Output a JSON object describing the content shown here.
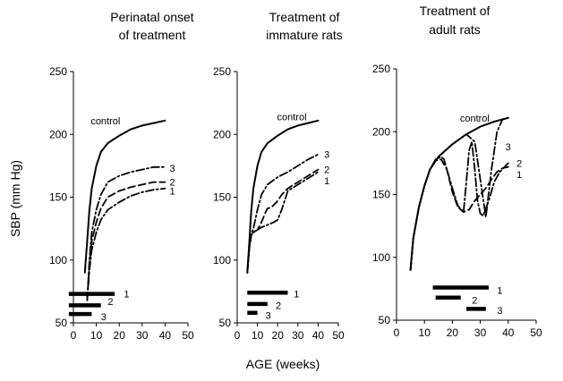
{
  "ylabel": "SBP (mm Hg)",
  "xlabel": "AGE (weeks)",
  "chart_data": [
    {
      "type": "line",
      "title": "Perinatal onset of treatment",
      "title_lines": [
        "Perinatal onset",
        "of treatment"
      ],
      "xlim": [
        0,
        50
      ],
      "ylim": [
        50,
        250
      ],
      "xticks": [
        0,
        10,
        20,
        30,
        40,
        50
      ],
      "yticks": [
        50,
        100,
        150,
        200,
        250
      ],
      "series": [
        {
          "name": "control",
          "style": "solid",
          "label_at": [
            14,
            211
          ],
          "points": [
            [
              5,
              90
            ],
            [
              6,
              115
            ],
            [
              7,
              140
            ],
            [
              8,
              157
            ],
            [
              10,
              175
            ],
            [
              12,
              186
            ],
            [
              15,
              193
            ],
            [
              20,
              199
            ],
            [
              25,
              204
            ],
            [
              30,
              207
            ],
            [
              35,
              209
            ],
            [
              40,
              211
            ]
          ]
        },
        {
          "name": "3",
          "style": "dashdot",
          "label_at": [
            42,
            173
          ],
          "points": [
            [
              6,
              68
            ],
            [
              7,
              100
            ],
            [
              8,
              122
            ],
            [
              10,
              140
            ],
            [
              12,
              152
            ],
            [
              15,
              162
            ],
            [
              20,
              167
            ],
            [
              25,
              170
            ],
            [
              30,
              172
            ],
            [
              35,
              174
            ],
            [
              40,
              174
            ]
          ]
        },
        {
          "name": "2",
          "style": "dashed",
          "label_at": [
            42,
            162
          ],
          "points": [
            [
              6,
              68
            ],
            [
              7,
              96
            ],
            [
              8,
              115
            ],
            [
              10,
              130
            ],
            [
              12,
              141
            ],
            [
              15,
              150
            ],
            [
              20,
              155
            ],
            [
              25,
              158
            ],
            [
              30,
              160
            ],
            [
              35,
              162
            ],
            [
              40,
              162
            ]
          ]
        },
        {
          "name": "1",
          "style": "dashdot",
          "label_at": [
            42,
            155
          ],
          "points": [
            [
              6,
              68
            ],
            [
              7,
              92
            ],
            [
              8,
              108
            ],
            [
              10,
              122
            ],
            [
              12,
              132
            ],
            [
              15,
              140
            ],
            [
              20,
              146
            ],
            [
              25,
              151
            ],
            [
              30,
              154
            ],
            [
              35,
              156
            ],
            [
              40,
              157
            ]
          ]
        }
      ],
      "bars": [
        {
          "label": "1",
          "start": -2,
          "end": 18,
          "y": 73,
          "label_at": [
            22,
            73
          ]
        },
        {
          "label": "2",
          "start": -2,
          "end": 12,
          "y": 64,
          "label_at": [
            15,
            67
          ]
        },
        {
          "label": "3",
          "start": -2,
          "end": 8,
          "y": 57,
          "label_at": [
            12,
            55
          ]
        }
      ]
    },
    {
      "type": "line",
      "title": "Treatment of immature rats",
      "title_lines": [
        "Treatment of",
        "immature rats"
      ],
      "xlim": [
        0,
        50
      ],
      "ylim": [
        50,
        250
      ],
      "xticks": [
        0,
        10,
        20,
        30,
        40,
        50
      ],
      "yticks": [
        50,
        100,
        150,
        200,
        250
      ],
      "series": [
        {
          "name": "control",
          "style": "solid",
          "label_at": [
            27,
            214
          ],
          "points": [
            [
              5,
              90
            ],
            [
              6,
              115
            ],
            [
              7,
              140
            ],
            [
              8,
              157
            ],
            [
              10,
              175
            ],
            [
              12,
              186
            ],
            [
              15,
              193
            ],
            [
              20,
              199
            ],
            [
              25,
              204
            ],
            [
              30,
              207
            ],
            [
              35,
              209
            ],
            [
              40,
              211
            ]
          ]
        },
        {
          "name": "3",
          "style": "dashdot",
          "label_at": [
            43,
            184
          ],
          "points": [
            [
              5,
              90
            ],
            [
              6,
              110
            ],
            [
              7,
              120
            ],
            [
              8,
              125
            ],
            [
              10,
              140
            ],
            [
              12,
              152
            ],
            [
              15,
              160
            ],
            [
              20,
              166
            ],
            [
              25,
              170
            ],
            [
              30,
              175
            ],
            [
              35,
              180
            ],
            [
              40,
              184
            ]
          ]
        },
        {
          "name": "2",
          "style": "dashed",
          "label_at": [
            43,
            172
          ],
          "points": [
            [
              5,
              90
            ],
            [
              6,
              110
            ],
            [
              7,
              120
            ],
            [
              8,
              122
            ],
            [
              10,
              124
            ],
            [
              12,
              130
            ],
            [
              14,
              138
            ],
            [
              15,
              141
            ],
            [
              17,
              142
            ],
            [
              20,
              147
            ],
            [
              22,
              152
            ],
            [
              25,
              157
            ],
            [
              30,
              162
            ],
            [
              35,
              167
            ],
            [
              40,
              172
            ]
          ]
        },
        {
          "name": "1",
          "style": "dashdot",
          "label_at": [
            43,
            163
          ],
          "points": [
            [
              5,
              90
            ],
            [
              6,
              110
            ],
            [
              7,
              120
            ],
            [
              8,
              122
            ],
            [
              10,
              124
            ],
            [
              12,
              126
            ],
            [
              15,
              128
            ],
            [
              18,
              130
            ],
            [
              20,
              132
            ],
            [
              22,
              140
            ],
            [
              25,
              155
            ],
            [
              30,
              160
            ],
            [
              35,
              165
            ],
            [
              40,
              170
            ]
          ]
        }
      ],
      "bars": [
        {
          "label": "1",
          "start": 5,
          "end": 25,
          "y": 74,
          "label_at": [
            28,
            73
          ]
        },
        {
          "label": "2",
          "start": 5,
          "end": 15,
          "y": 65,
          "label_at": [
            19,
            64
          ]
        },
        {
          "label": "3",
          "start": 5,
          "end": 10,
          "y": 58,
          "label_at": [
            14,
            56
          ]
        }
      ]
    },
    {
      "type": "line",
      "title": "Treatment of adult rats",
      "title_lines": [
        "Treatment of",
        "adult rats"
      ],
      "xlim": [
        0,
        50
      ],
      "ylim": [
        50,
        250
      ],
      "xticks": [
        0,
        10,
        20,
        30,
        40,
        50
      ],
      "yticks": [
        50,
        100,
        150,
        200,
        250
      ],
      "series": [
        {
          "name": "control",
          "style": "solid",
          "label_at": [
            28,
            211
          ],
          "points": [
            [
              5,
              90
            ],
            [
              6,
              115
            ],
            [
              8,
              140
            ],
            [
              10,
              157
            ],
            [
              12,
              170
            ],
            [
              15,
              180
            ],
            [
              20,
              190
            ],
            [
              25,
              198
            ],
            [
              30,
              204
            ],
            [
              35,
              208
            ],
            [
              40,
              211
            ]
          ]
        },
        {
          "name": "3",
          "style": "dashdot",
          "label_at": [
            39,
            188
          ],
          "points": [
            [
              5,
              90
            ],
            [
              6,
              115
            ],
            [
              8,
              140
            ],
            [
              10,
              157
            ],
            [
              12,
              170
            ],
            [
              15,
              180
            ],
            [
              20,
              190
            ],
            [
              25,
              198
            ],
            [
              28,
              192
            ],
            [
              30,
              162
            ],
            [
              32,
              132
            ],
            [
              34,
              170
            ],
            [
              36,
              200
            ],
            [
              38,
              210
            ],
            [
              40,
              211
            ]
          ]
        },
        {
          "name": "2",
          "style": "dashdot",
          "label_at": [
            43,
            175
          ],
          "points": [
            [
              5,
              90
            ],
            [
              6,
              115
            ],
            [
              8,
              140
            ],
            [
              10,
              157
            ],
            [
              12,
              170
            ],
            [
              14,
              178
            ],
            [
              16,
              180
            ],
            [
              17,
              178
            ],
            [
              18,
              170
            ],
            [
              20,
              155
            ],
            [
              22,
              141
            ],
            [
              24,
              136
            ],
            [
              25,
              160
            ],
            [
              26,
              185
            ],
            [
              27,
              192
            ],
            [
              28,
              170
            ],
            [
              29,
              145
            ],
            [
              30,
              135
            ],
            [
              31,
              133
            ],
            [
              33,
              145
            ],
            [
              35,
              160
            ],
            [
              37,
              168
            ],
            [
              40,
              175
            ]
          ]
        },
        {
          "name": "1",
          "style": "dashed",
          "label_at": [
            43,
            166
          ],
          "points": [
            [
              5,
              90
            ],
            [
              6,
              115
            ],
            [
              8,
              140
            ],
            [
              10,
              157
            ],
            [
              12,
              170
            ],
            [
              14,
              177
            ],
            [
              16,
              178
            ],
            [
              18,
              170
            ],
            [
              20,
              152
            ],
            [
              22,
              140
            ],
            [
              24,
              136
            ],
            [
              26,
              138
            ],
            [
              28,
              145
            ],
            [
              30,
              150
            ],
            [
              32,
              155
            ],
            [
              34,
              162
            ],
            [
              36,
              168
            ],
            [
              38,
              171
            ],
            [
              40,
              172
            ]
          ]
        }
      ],
      "bars": [
        {
          "label": "1",
          "start": 13,
          "end": 33,
          "y": 76,
          "label_at": [
            36,
            74
          ]
        },
        {
          "label": "2",
          "start": 14,
          "end": 23,
          "y": 68,
          "label_at": [
            27,
            66
          ]
        },
        {
          "label": "3",
          "start": 25,
          "end": 32,
          "y": 59,
          "label_at": [
            36,
            58
          ]
        }
      ]
    }
  ]
}
